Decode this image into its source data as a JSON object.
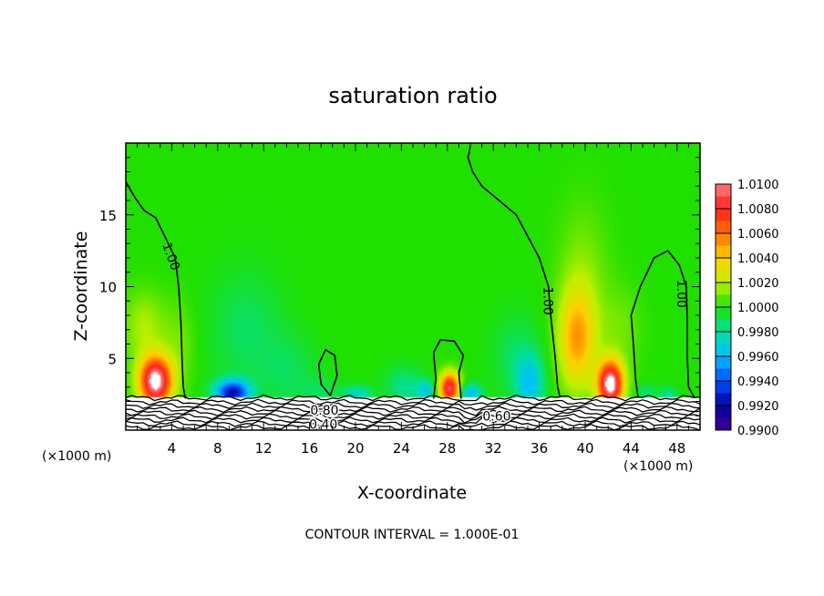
{
  "chart_data": {
    "type": "heatmap",
    "title": "saturation ratio",
    "xlabel": "X-coordinate",
    "ylabel": "Z-coordinate",
    "x_unit": "(×1000 m)",
    "z_unit": "(×1000 m)",
    "xlim": [
      0,
      50
    ],
    "ylim": [
      0,
      20
    ],
    "x_ticks": [
      4,
      8,
      12,
      16,
      20,
      24,
      28,
      32,
      36,
      40,
      44,
      48
    ],
    "y_ticks": [
      5,
      10,
      15
    ],
    "footer": "CONTOUR INTERVAL = 1.000E-01",
    "colorbar": {
      "min": 0.99,
      "max": 1.01,
      "labels": [
        "1.0100",
        "1.0080",
        "1.0060",
        "1.0040",
        "1.0020",
        "1.0000",
        "0.9980",
        "0.9960",
        "0.9940",
        "0.9920",
        "0.9900"
      ],
      "colors": [
        "#ff8080",
        "#ff2020",
        "#ff7000",
        "#ffd000",
        "#c0f000",
        "#20e000",
        "#00e0a0",
        "#00c0ff",
        "#0050ff",
        "#0000a0",
        "#400090"
      ]
    },
    "base_value": 1.0,
    "contour_labels": [
      {
        "text": "1.00",
        "x": 3.6,
        "z": 12
      },
      {
        "text": "1.00",
        "x": 36.4,
        "z": 9
      },
      {
        "text": "1.00",
        "x": 48.0,
        "z": 9.5
      },
      {
        "text": "0.80",
        "x": 17.3,
        "z": 1.4
      },
      {
        "text": "0.60",
        "x": 32.3,
        "z": 1.0
      },
      {
        "text": "0.40",
        "x": 17.2,
        "z": 0.4
      }
    ],
    "anomalies": [
      {
        "x": 2.6,
        "z": 3.4,
        "sx": 1.4,
        "sz": 1.7,
        "a": 0.011
      },
      {
        "x": 1.6,
        "z": 7.2,
        "sx": 1.8,
        "sz": 2.5,
        "a": 0.0018
      },
      {
        "x": 4.6,
        "z": 6.0,
        "sx": 1.5,
        "sz": 3.0,
        "a": 0.001
      },
      {
        "x": 9.3,
        "z": 2.6,
        "sx": 1.5,
        "sz": 0.9,
        "a": -0.0075
      },
      {
        "x": 10.5,
        "z": 7.0,
        "sx": 3.2,
        "sz": 4.0,
        "a": -0.0012
      },
      {
        "x": 14.2,
        "z": 4.0,
        "sx": 2.5,
        "sz": 2.5,
        "a": -0.001
      },
      {
        "x": 17.0,
        "z": 2.6,
        "sx": 1.8,
        "sz": 1.0,
        "a": -0.001
      },
      {
        "x": 20.2,
        "z": 2.5,
        "sx": 1.2,
        "sz": 0.6,
        "a": -0.0028
      },
      {
        "x": 24.2,
        "z": 3.0,
        "sx": 1.6,
        "sz": 1.4,
        "a": -0.0018
      },
      {
        "x": 26.2,
        "z": 2.7,
        "sx": 0.9,
        "sz": 0.8,
        "a": -0.003
      },
      {
        "x": 28.2,
        "z": 2.9,
        "sx": 0.9,
        "sz": 1.1,
        "a": 0.009
      },
      {
        "x": 30.0,
        "z": 2.5,
        "sx": 1.0,
        "sz": 0.7,
        "a": -0.004
      },
      {
        "x": 35.2,
        "z": 3.2,
        "sx": 1.2,
        "sz": 2.0,
        "a": -0.0034
      },
      {
        "x": 34.0,
        "z": 5.0,
        "sx": 2.0,
        "sz": 3.0,
        "a": -0.0012
      },
      {
        "x": 39.3,
        "z": 6.3,
        "sx": 1.6,
        "sz": 3.4,
        "a": 0.0048
      },
      {
        "x": 39.8,
        "z": 10.8,
        "sx": 2.2,
        "sz": 5.0,
        "a": 0.0012
      },
      {
        "x": 42.2,
        "z": 3.2,
        "sx": 1.1,
        "sz": 1.6,
        "a": 0.011
      },
      {
        "x": 43.0,
        "z": 7.0,
        "sx": 1.8,
        "sz": 3.0,
        "a": 0.001
      },
      {
        "x": 47.2,
        "z": 2.4,
        "sx": 0.8,
        "sz": 0.6,
        "a": -0.002
      },
      {
        "x": 45.3,
        "z": 2.6,
        "sx": 0.8,
        "sz": 0.6,
        "a": -0.0015
      }
    ],
    "contours_one": [
      [
        [
          0.0,
          17.3
        ],
        [
          0.8,
          16.2
        ],
        [
          1.6,
          15.3
        ],
        [
          2.6,
          14.8
        ],
        [
          3.4,
          13.5
        ],
        [
          4.3,
          12.0
        ],
        [
          4.6,
          10.0
        ],
        [
          4.8,
          7.5
        ],
        [
          4.9,
          5.0
        ],
        [
          5.0,
          3.0
        ],
        [
          5.2,
          2.2
        ]
      ],
      [
        [
          30.0,
          19.8
        ],
        [
          29.8,
          19.0
        ],
        [
          30.2,
          18.0
        ],
        [
          31.0,
          17.0
        ],
        [
          32.5,
          16.0
        ],
        [
          34.0,
          15.0
        ],
        [
          35.0,
          13.5
        ],
        [
          36.0,
          12.0
        ],
        [
          36.8,
          10.0
        ],
        [
          37.0,
          8.0
        ],
        [
          37.4,
          5.0
        ],
        [
          37.6,
          3.0
        ],
        [
          37.8,
          2.3
        ]
      ],
      [
        [
          44.6,
          2.3
        ],
        [
          44.4,
          3.5
        ],
        [
          44.2,
          6.0
        ],
        [
          44.0,
          8.0
        ],
        [
          44.8,
          10.0
        ],
        [
          46.0,
          12.0
        ],
        [
          47.2,
          12.5
        ],
        [
          48.2,
          11.5
        ],
        [
          48.8,
          10.0
        ],
        [
          48.9,
          7.5
        ],
        [
          48.9,
          5.0
        ],
        [
          49.0,
          3.0
        ],
        [
          49.5,
          2.3
        ]
      ],
      [
        [
          17.8,
          2.4
        ],
        [
          17.0,
          3.2
        ],
        [
          16.8,
          4.6
        ],
        [
          17.4,
          5.6
        ],
        [
          18.2,
          5.2
        ],
        [
          18.4,
          3.8
        ],
        [
          17.8,
          2.4
        ]
      ],
      [
        [
          26.8,
          2.2
        ],
        [
          27.0,
          3.6
        ],
        [
          26.8,
          5.4
        ],
        [
          27.4,
          6.3
        ],
        [
          28.6,
          6.2
        ],
        [
          29.4,
          5.2
        ],
        [
          29.0,
          4.0
        ],
        [
          29.2,
          2.2
        ]
      ]
    ],
    "surface_contour_z": [
      2.25,
      1.95,
      1.7,
      1.45,
      1.2,
      0.95,
      0.7,
      0.45,
      0.2
    ]
  }
}
